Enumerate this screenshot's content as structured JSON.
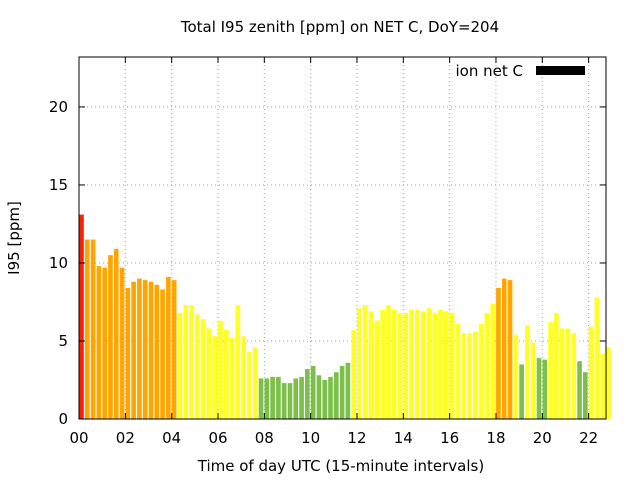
{
  "chart_data": {
    "type": "bar",
    "title": "Total I95 zenith [ppm] on NET C, DoY=204",
    "xlabel": "Time of day UTC (15-minute intervals)",
    "ylabel": "I95 [ppm]",
    "xlim": [
      0,
      22.75
    ],
    "ylim": [
      0,
      23.2
    ],
    "grid": true,
    "x_step_hours": 0.25,
    "xticks": [
      {
        "value": 0,
        "label": "00"
      },
      {
        "value": 2,
        "label": "02"
      },
      {
        "value": 4,
        "label": "04"
      },
      {
        "value": 6,
        "label": "06"
      },
      {
        "value": 8,
        "label": "08"
      },
      {
        "value": 10,
        "label": "10"
      },
      {
        "value": 12,
        "label": "12"
      },
      {
        "value": 14,
        "label": "14"
      },
      {
        "value": 16,
        "label": "16"
      },
      {
        "value": 18,
        "label": "18"
      },
      {
        "value": 20,
        "label": "20"
      },
      {
        "value": 22,
        "label": "22"
      }
    ],
    "yticks": [
      {
        "value": 0,
        "label": "0"
      },
      {
        "value": 5,
        "label": "5"
      },
      {
        "value": 10,
        "label": "10"
      },
      {
        "value": 15,
        "label": "15"
      },
      {
        "value": 20,
        "label": "20"
      }
    ],
    "legend": {
      "label": "ion net C",
      "color": "#000000",
      "position": "top-right"
    },
    "color_levels": {
      "green": "#7cbf4a",
      "yellow": "#ffff22",
      "orange": "#ffa500",
      "red": "#ff2200"
    },
    "values": [
      13.1,
      11.5,
      11.5,
      9.8,
      9.7,
      10.5,
      10.9,
      9.7,
      8.4,
      8.8,
      9.0,
      8.9,
      8.8,
      8.6,
      8.3,
      9.1,
      8.9,
      6.8,
      7.3,
      7.3,
      6.7,
      6.4,
      5.8,
      5.3,
      6.3,
      5.7,
      5.2,
      7.3,
      5.3,
      4.3,
      4.6,
      2.6,
      2.6,
      2.7,
      2.7,
      2.3,
      2.3,
      2.6,
      2.7,
      3.2,
      3.4,
      2.8,
      2.5,
      2.7,
      3.0,
      3.4,
      3.6,
      5.7,
      7.1,
      7.3,
      6.9,
      6.3,
      7.0,
      7.3,
      7.0,
      6.8,
      6.8,
      7.0,
      7.0,
      6.9,
      7.1,
      6.8,
      7.0,
      6.9,
      6.8,
      6.1,
      5.5,
      5.5,
      5.6,
      6.1,
      6.8,
      7.4,
      8.4,
      9.0,
      8.9,
      5.4,
      3.5,
      6.0,
      4.9,
      3.9,
      3.8,
      6.2,
      6.8,
      5.8,
      5.8,
      5.5,
      3.7,
      3.0,
      5.9,
      7.8,
      4.2,
      4.6
    ],
    "colors": [
      "red",
      "orange",
      "orange",
      "orange",
      "orange",
      "orange",
      "orange",
      "orange",
      "orange",
      "orange",
      "orange",
      "orange",
      "orange",
      "orange",
      "orange",
      "orange",
      "orange",
      "yellow",
      "yellow",
      "yellow",
      "yellow",
      "yellow",
      "yellow",
      "yellow",
      "yellow",
      "yellow",
      "yellow",
      "yellow",
      "yellow",
      "yellow",
      "yellow",
      "green",
      "green",
      "green",
      "green",
      "green",
      "green",
      "green",
      "green",
      "green",
      "green",
      "green",
      "green",
      "green",
      "green",
      "green",
      "green",
      "yellow",
      "yellow",
      "yellow",
      "yellow",
      "yellow",
      "yellow",
      "yellow",
      "yellow",
      "yellow",
      "yellow",
      "yellow",
      "yellow",
      "yellow",
      "yellow",
      "yellow",
      "yellow",
      "yellow",
      "yellow",
      "yellow",
      "yellow",
      "yellow",
      "yellow",
      "yellow",
      "yellow",
      "yellow",
      "orange",
      "orange",
      "orange",
      "yellow",
      "green",
      "yellow",
      "yellow",
      "green",
      "green",
      "yellow",
      "yellow",
      "yellow",
      "yellow",
      "yellow",
      "green",
      "green",
      "yellow",
      "yellow",
      "yellow",
      "yellow"
    ]
  }
}
